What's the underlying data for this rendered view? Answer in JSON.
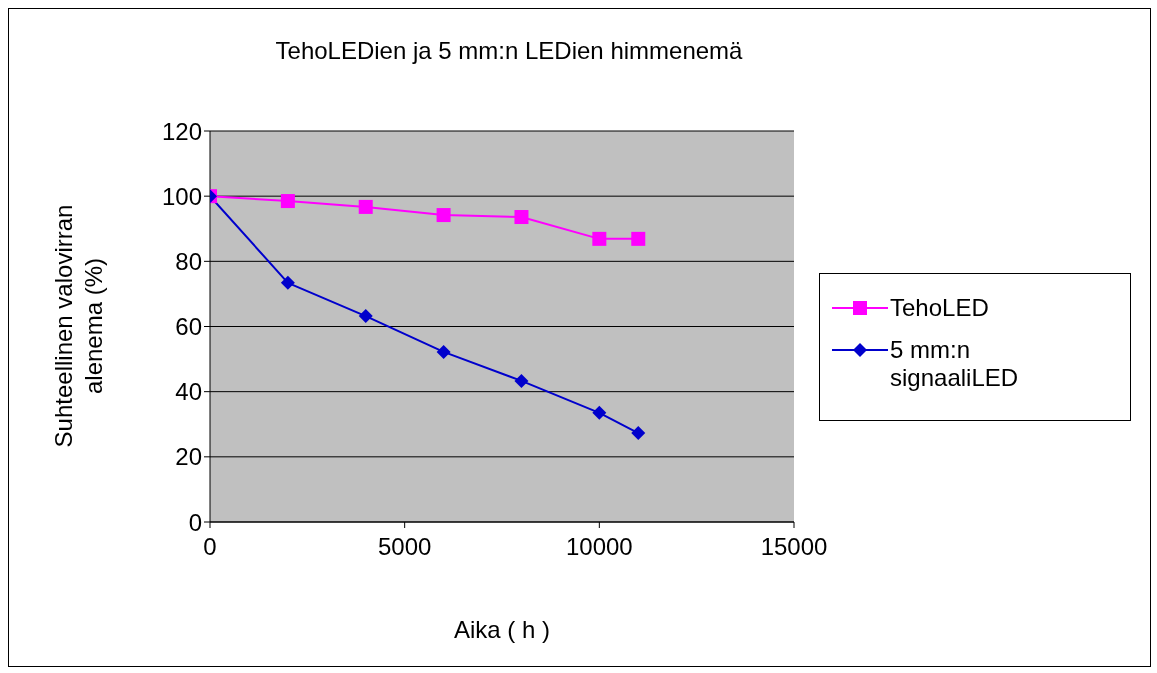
{
  "chart_data": {
    "type": "line",
    "title": "TehoLEDien ja 5 mm:n LEDien himmenemä",
    "xlabel": "Aika ( h )",
    "ylabel": "Suhteellinen valovirran alenema (%)",
    "x": [
      0,
      2000,
      4000,
      6000,
      8000,
      10000,
      11000
    ],
    "series": [
      {
        "name": "TehoLED",
        "color": "#ff00ff",
        "marker": "square",
        "values": [
          100,
          98.5,
          96.7,
          94.2,
          93.6,
          86.9,
          86.9
        ]
      },
      {
        "name": "5 mm:n signaaliLED",
        "color": "#0000cc",
        "marker": "diamond",
        "values": [
          100,
          73.4,
          63.2,
          52.2,
          43.3,
          33.5,
          27.3
        ]
      }
    ],
    "xlim": [
      0,
      15000
    ],
    "xticks": [
      0,
      5000,
      10000,
      15000
    ],
    "ylim": [
      0,
      120
    ],
    "yticks": [
      0,
      20,
      40,
      60,
      80,
      100,
      120
    ],
    "grid": "y",
    "legend": "right"
  }
}
